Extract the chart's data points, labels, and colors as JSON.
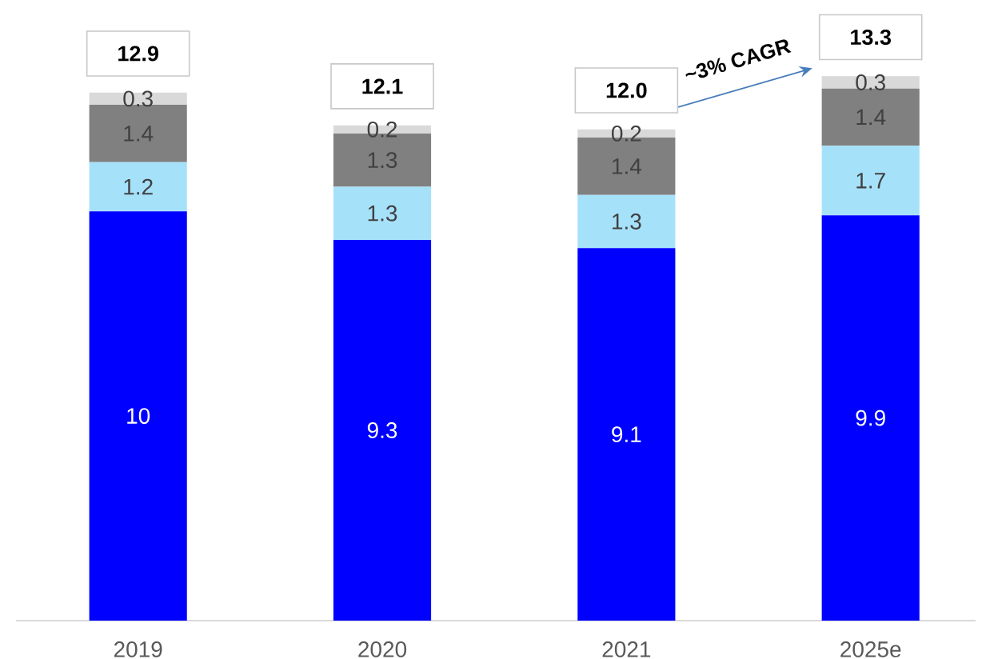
{
  "chart_data": {
    "type": "bar",
    "stacked": true,
    "categories": [
      "2019",
      "2020",
      "2021",
      "2025e"
    ],
    "series": [
      {
        "color": "#0000ff",
        "values": [
          10,
          9.3,
          9.1,
          9.9
        ]
      },
      {
        "color": "#a6e1fa",
        "values": [
          1.2,
          1.3,
          1.3,
          1.7
        ]
      },
      {
        "color": "#808080",
        "values": [
          1.4,
          1.3,
          1.4,
          1.4
        ]
      },
      {
        "color": "#d9d9d9",
        "values": [
          0.3,
          0.2,
          0.2,
          0.3
        ]
      }
    ],
    "totals": [
      "12.9",
      "12.1",
      "12.0",
      "13.3"
    ],
    "data_labels": true,
    "annotations": [
      "~3% CAGR"
    ],
    "tick_labels": "x"
  }
}
